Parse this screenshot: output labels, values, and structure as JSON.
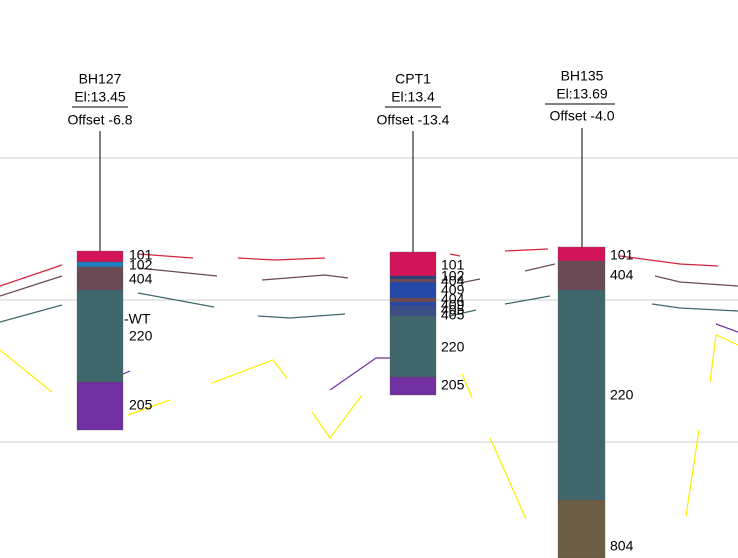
{
  "boreholes": [
    {
      "name": "BH127",
      "elevation": "El:13.45",
      "offset": "Offset -6.8",
      "layers": [
        "101",
        "102",
        "404",
        "220",
        "205"
      ],
      "water_table": "-WT"
    },
    {
      "name": "CPT1",
      "elevation": "El:13.4",
      "offset": "Offset -13.4",
      "layers": [
        "101",
        "102",
        "404",
        "409",
        "404",
        "409",
        "405",
        "405",
        "220",
        "205"
      ]
    },
    {
      "name": "BH135",
      "elevation": "El:13.69",
      "offset": "Offset -4.0",
      "layers": [
        "101",
        "404",
        "220",
        "804"
      ]
    }
  ]
}
